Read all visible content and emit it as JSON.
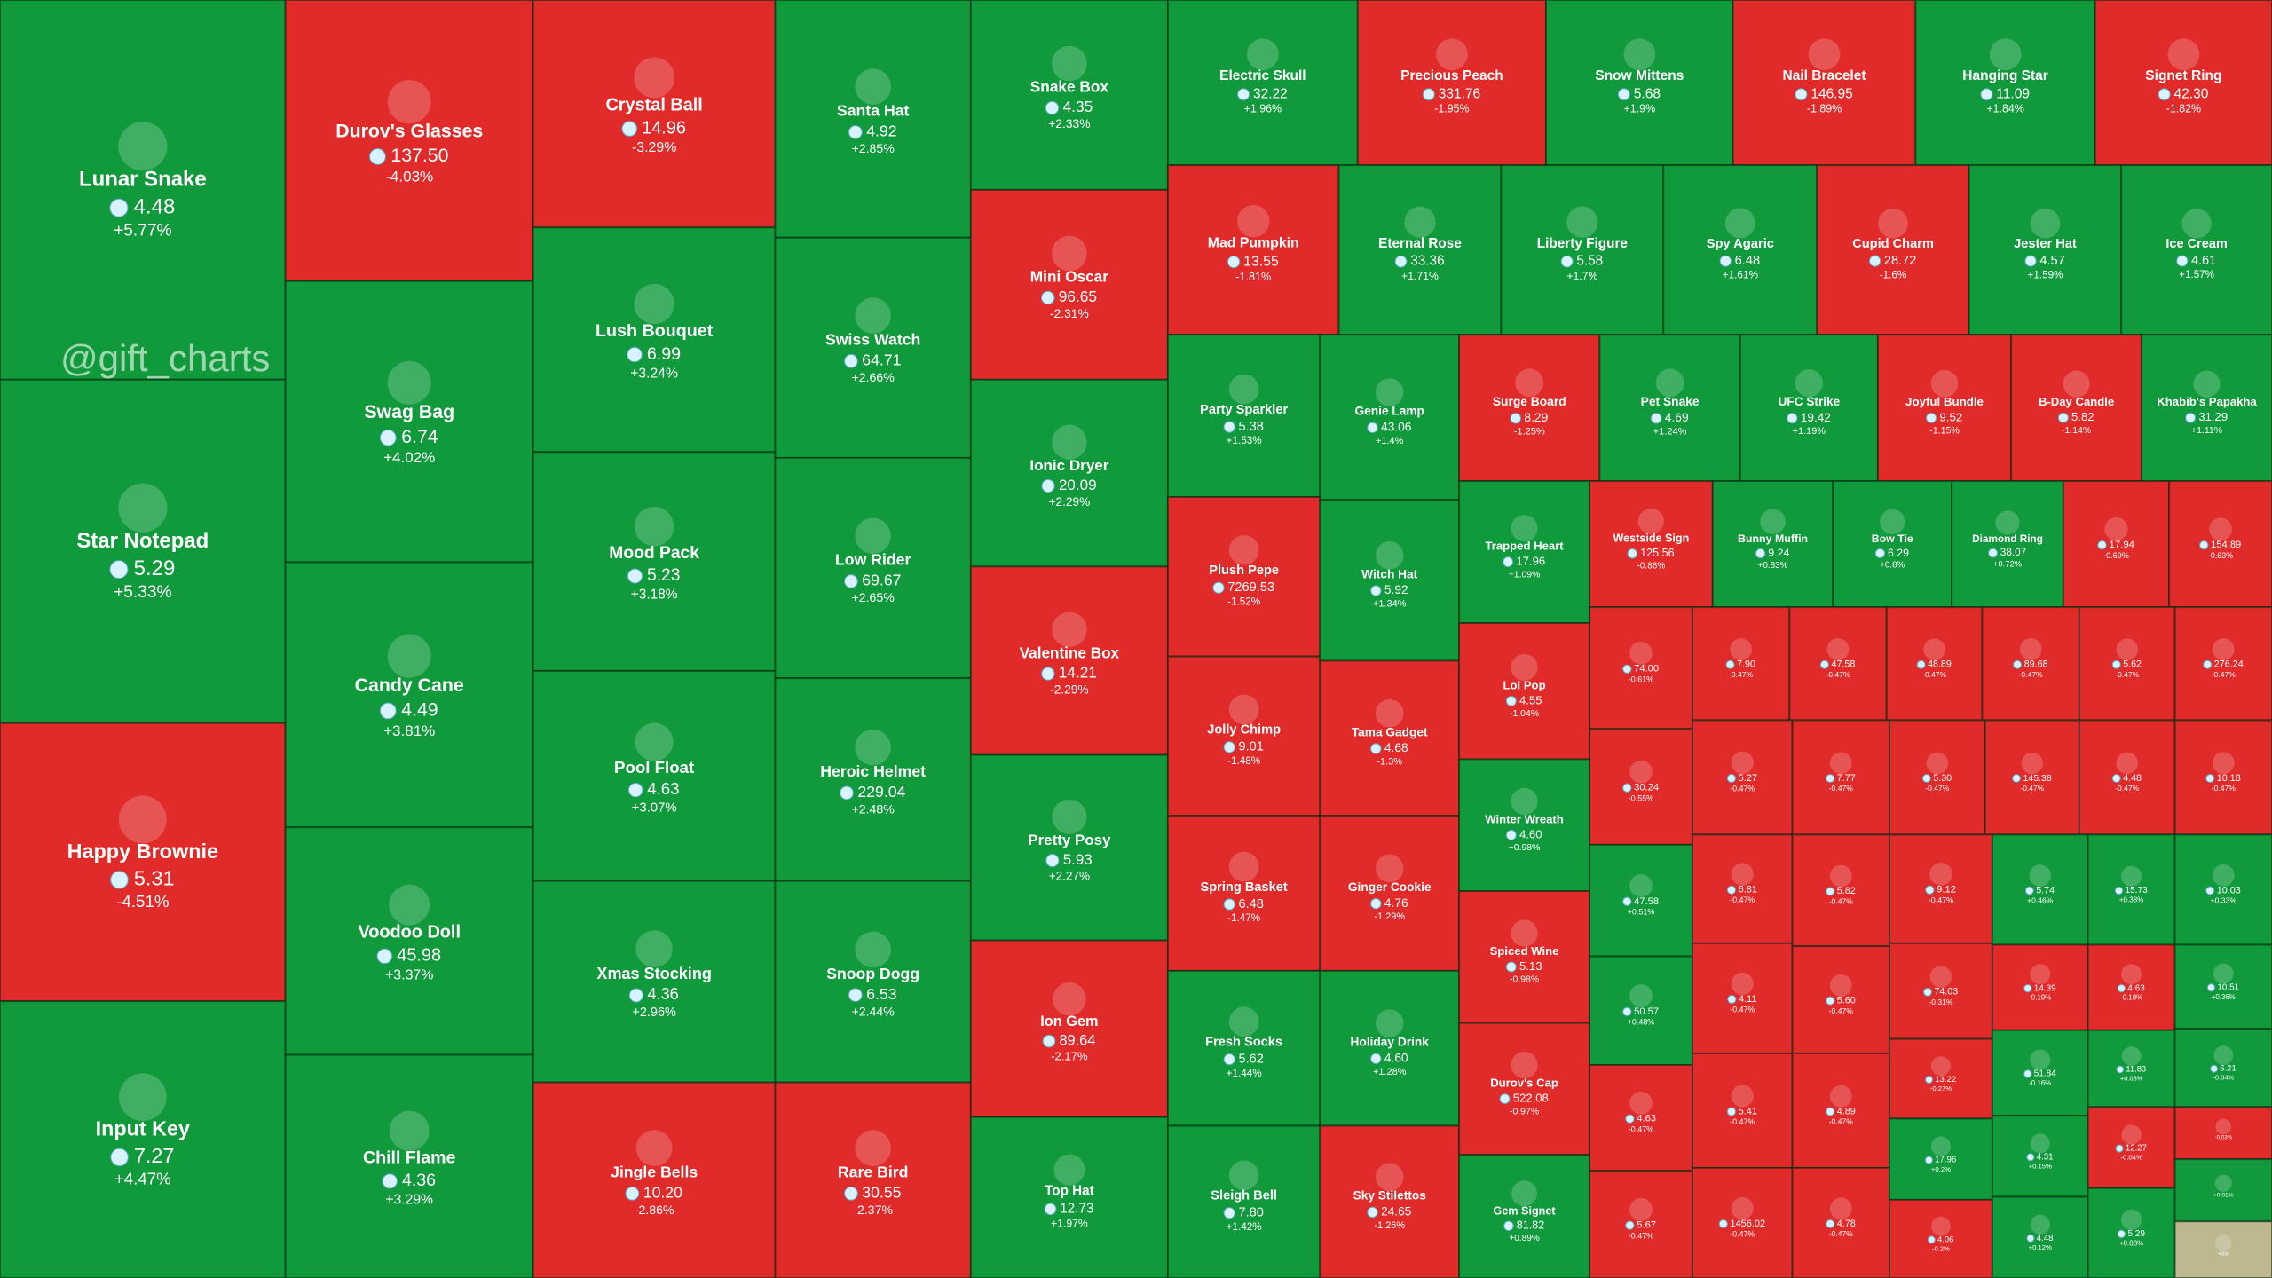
{
  "watermark": "@gift_charts",
  "tiles": [
    {
      "name": "Lunar Snake",
      "price": "4.48",
      "change": "+5.77%",
      "color": "#119a3c"
    },
    {
      "name": "Star Notepad",
      "price": "5.29",
      "change": "+5.33%",
      "color": "#119a3c"
    },
    {
      "name": "Happy Brownie",
      "price": "5.31",
      "change": "-4.51%",
      "color": "#e12a2a"
    },
    {
      "name": "Input Key",
      "price": "7.27",
      "change": "+4.47%",
      "color": "#119a3c"
    },
    {
      "name": "Durov's Glasses",
      "price": "137.50",
      "change": "-4.03%",
      "color": "#e12a2a"
    },
    {
      "name": "Swag Bag",
      "price": "6.74",
      "change": "+4.02%",
      "color": "#119a3c"
    },
    {
      "name": "Candy Cane",
      "price": "4.49",
      "change": "+3.81%",
      "color": "#119a3c"
    },
    {
      "name": "Voodoo Doll",
      "price": "45.98",
      "change": "+3.37%",
      "color": "#119a3c"
    },
    {
      "name": "Chill Flame",
      "price": "4.36",
      "change": "+3.29%",
      "color": "#119a3c"
    },
    {
      "name": "Crystal Ball",
      "price": "14.96",
      "change": "-3.29%",
      "color": "#e12a2a"
    },
    {
      "name": "Lush Bouquet",
      "price": "6.99",
      "change": "+3.24%",
      "color": "#119a3c"
    },
    {
      "name": "Mood Pack",
      "price": "5.23",
      "change": "+3.18%",
      "color": "#119a3c"
    },
    {
      "name": "Pool Float",
      "price": "4.63",
      "change": "+3.07%",
      "color": "#119a3c"
    },
    {
      "name": "Xmas Stocking",
      "price": "4.36",
      "change": "+2.96%",
      "color": "#119a3c"
    },
    {
      "name": "Jingle Bells",
      "price": "10.20",
      "change": "-2.86%",
      "color": "#e12a2a"
    },
    {
      "name": "Santa Hat",
      "price": "4.92",
      "change": "+2.85%",
      "color": "#119a3c"
    },
    {
      "name": "Swiss Watch",
      "price": "64.71",
      "change": "+2.66%",
      "color": "#119a3c"
    },
    {
      "name": "Low Rider",
      "price": "69.67",
      "change": "+2.65%",
      "color": "#119a3c"
    },
    {
      "name": "Heroic Helmet",
      "price": "229.04",
      "change": "+2.48%",
      "color": "#119a3c"
    },
    {
      "name": "Snoop Dogg",
      "price": "6.53",
      "change": "+2.44%",
      "color": "#119a3c"
    },
    {
      "name": "Rare Bird",
      "price": "30.55",
      "change": "-2.37%",
      "color": "#e12a2a"
    },
    {
      "name": "Snake Box",
      "price": "4.35",
      "change": "+2.33%",
      "color": "#119a3c"
    },
    {
      "name": "Mini Oscar",
      "price": "96.65",
      "change": "-2.31%",
      "color": "#e12a2a"
    },
    {
      "name": "Ionic Dryer",
      "price": "20.09",
      "change": "+2.29%",
      "color": "#119a3c"
    },
    {
      "name": "Valentine Box",
      "price": "14.21",
      "change": "-2.29%",
      "color": "#e12a2a"
    },
    {
      "name": "Pretty Posy",
      "price": "5.93",
      "change": "+2.27%",
      "color": "#119a3c"
    },
    {
      "name": "Ion Gem",
      "price": "89.64",
      "change": "-2.17%",
      "color": "#e12a2a"
    },
    {
      "name": "Top Hat",
      "price": "12.73",
      "change": "+1.97%",
      "color": "#119a3c"
    },
    {
      "name": "Electric Skull",
      "price": "32.22",
      "change": "+1.96%",
      "color": "#119a3c"
    },
    {
      "name": "Precious Peach",
      "price": "331.76",
      "change": "-1.95%",
      "color": "#e12a2a"
    },
    {
      "name": "Snow Mittens",
      "price": "5.68",
      "change": "+1.9%",
      "color": "#119a3c"
    },
    {
      "name": "Nail Bracelet",
      "price": "146.95",
      "change": "-1.89%",
      "color": "#e12a2a"
    },
    {
      "name": "Hanging Star",
      "price": "11.09",
      "change": "+1.84%",
      "color": "#119a3c"
    },
    {
      "name": "Signet Ring",
      "price": "42.30",
      "change": "-1.82%",
      "color": "#e12a2a"
    },
    {
      "name": "Mad Pumpkin",
      "price": "13.55",
      "change": "-1.81%",
      "color": "#e12a2a"
    },
    {
      "name": "Eternal Rose",
      "price": "33.36",
      "change": "+1.71%",
      "color": "#119a3c"
    },
    {
      "name": "Liberty Figure",
      "price": "5.58",
      "change": "+1.7%",
      "color": "#119a3c"
    },
    {
      "name": "Spy Agaric",
      "price": "6.48",
      "change": "+1.61%",
      "color": "#119a3c"
    },
    {
      "name": "Cupid Charm",
      "price": "28.72",
      "change": "-1.6%",
      "color": "#e12a2a"
    },
    {
      "name": "Jester Hat",
      "price": "4.57",
      "change": "+1.59%",
      "color": "#119a3c"
    },
    {
      "name": "Ice Cream",
      "price": "4.61",
      "change": "+1.57%",
      "color": "#119a3c"
    },
    {
      "name": "Party Sparkler",
      "price": "5.38",
      "change": "+1.53%",
      "color": "#119a3c"
    },
    {
      "name": "Plush Pepe",
      "price": "7269.53",
      "change": "-1.52%",
      "color": "#e12a2a"
    },
    {
      "name": "Jolly Chimp",
      "price": "9.01",
      "change": "-1.48%",
      "color": "#e12a2a"
    },
    {
      "name": "Spring Basket",
      "price": "6.48",
      "change": "-1.47%",
      "color": "#e12a2a"
    },
    {
      "name": "Fresh Socks",
      "price": "5.62",
      "change": "+1.44%",
      "color": "#119a3c"
    },
    {
      "name": "Sleigh Bell",
      "price": "7.80",
      "change": "+1.42%",
      "color": "#119a3c"
    },
    {
      "name": "Genie Lamp",
      "price": "43.06",
      "change": "+1.4%",
      "color": "#119a3c"
    },
    {
      "name": "Witch Hat",
      "price": "5.92",
      "change": "+1.34%",
      "color": "#119a3c"
    },
    {
      "name": "Tama Gadget",
      "price": "4.68",
      "change": "-1.3%",
      "color": "#e12a2a"
    },
    {
      "name": "Ginger Cookie",
      "price": "4.76",
      "change": "-1.29%",
      "color": "#e12a2a"
    },
    {
      "name": "Holiday Drink",
      "price": "4.60",
      "change": "+1.28%",
      "color": "#119a3c"
    },
    {
      "name": "Sky Stilettos",
      "price": "24.65",
      "change": "-1.26%",
      "color": "#e12a2a"
    },
    {
      "name": "Surge Board",
      "price": "8.29",
      "change": "-1.25%",
      "color": "#e12a2a"
    },
    {
      "name": "Pet Snake",
      "price": "4.69",
      "change": "+1.24%",
      "color": "#119a3c"
    },
    {
      "name": "UFC Strike",
      "price": "19.42",
      "change": "+1.19%",
      "color": "#119a3c"
    },
    {
      "name": "Joyful Bundle",
      "price": "9.52",
      "change": "-1.15%",
      "color": "#e12a2a"
    },
    {
      "name": "B-Day Candle",
      "price": "5.82",
      "change": "-1.14%",
      "color": "#e12a2a"
    },
    {
      "name": "Khabib's Papakha",
      "price": "31.29",
      "change": "+1.11%",
      "color": "#119a3c"
    },
    {
      "name": "Trapped Heart",
      "price": "17.96",
      "change": "+1.09%",
      "color": "#119a3c"
    },
    {
      "name": "Lol Pop",
      "price": "4.55",
      "change": "-1.04%",
      "color": "#e12a2a"
    },
    {
      "name": "Winter Wreath",
      "price": "4.60",
      "change": "+0.98%",
      "color": "#119a3c"
    },
    {
      "name": "Spiced Wine",
      "price": "5.13",
      "change": "-0.98%",
      "color": "#e12a2a"
    },
    {
      "name": "Durov's Cap",
      "price": "522.08",
      "change": "-0.97%",
      "color": "#e12a2a"
    },
    {
      "name": "Gem Signet",
      "price": "81.82",
      "change": "+0.89%",
      "color": "#119a3c"
    },
    {
      "name": "Westside Sign",
      "price": "125.56",
      "change": "-0.86%",
      "color": "#e12a2a"
    },
    {
      "name": "Bunny Muffin",
      "price": "9.24",
      "change": "+0.83%",
      "color": "#119a3c"
    },
    {
      "name": "Bow Tie",
      "price": "6.29",
      "change": "+0.8%",
      "color": "#119a3c"
    },
    {
      "name": "Diamond Ring",
      "price": "38.07",
      "change": "+0.72%",
      "color": "#119a3c"
    },
    {
      "price": "17.94",
      "change": "-0.69%",
      "color": "#e12a2a"
    },
    {
      "price": "154.89",
      "change": "-0.63%",
      "color": "#e12a2a"
    },
    {
      "price": "74.00",
      "change": "-0.61%",
      "color": "#e12a2a"
    },
    {
      "price": "30.24",
      "change": "-0.55%",
      "color": "#e12a2a"
    },
    {
      "price": "47.58",
      "change": "+0.51%",
      "color": "#119a3c"
    },
    {
      "price": "50.57",
      "change": "+0.48%",
      "color": "#119a3c"
    },
    {
      "price": "4.63",
      "change": "-0.47%",
      "color": "#e12a2a"
    },
    {
      "price": "5.67",
      "change": "-0.47%",
      "color": "#e12a2a"
    },
    {
      "price": "7.90",
      "change": "-0.47%",
      "color": "#e12a2a"
    },
    {
      "price": "47.58",
      "change": "-0.47%",
      "color": "#e12a2a"
    },
    {
      "price": "48.89",
      "change": "-0.47%",
      "color": "#e12a2a"
    },
    {
      "price": "89.68",
      "change": "-0.47%",
      "color": "#e12a2a"
    },
    {
      "price": "5.62",
      "change": "-0.47%",
      "color": "#e12a2a"
    },
    {
      "price": "276.24",
      "change": "-0.47%",
      "color": "#e12a2a"
    },
    {
      "price": "5.27",
      "change": "-0.47%",
      "color": "#e12a2a"
    },
    {
      "price": "7.77",
      "change": "-0.47%",
      "color": "#e12a2a"
    },
    {
      "price": "5.30",
      "change": "-0.47%",
      "color": "#e12a2a"
    },
    {
      "price": "145.38",
      "change": "-0.47%",
      "color": "#e12a2a"
    },
    {
      "price": "4.48",
      "change": "-0.47%",
      "color": "#e12a2a"
    },
    {
      "price": "10.18",
      "change": "-0.47%",
      "color": "#e12a2a"
    },
    {
      "price": "6.81",
      "change": "-0.47%",
      "color": "#e12a2a"
    },
    {
      "price": "4.11",
      "change": "-0.47%",
      "color": "#e12a2a"
    },
    {
      "price": "5.41",
      "change": "-0.47%",
      "color": "#e12a2a"
    },
    {
      "price": "1456.02",
      "change": "-0.47%",
      "color": "#e12a2a"
    },
    {
      "price": "5.82",
      "change": "-0.47%",
      "color": "#e12a2a"
    },
    {
      "price": "5.60",
      "change": "-0.47%",
      "color": "#e12a2a"
    },
    {
      "price": "4.89",
      "change": "-0.47%",
      "color": "#e12a2a"
    },
    {
      "price": "4.78",
      "change": "-0.47%",
      "color": "#e12a2a"
    },
    {
      "price": "9.12",
      "change": "-0.47%",
      "color": "#e12a2a"
    },
    {
      "price": "74.03",
      "change": "-0.31%",
      "color": "#e12a2a"
    },
    {
      "price": "13.22",
      "change": "-0.27%",
      "color": "#e12a2a"
    },
    {
      "price": "17.96",
      "change": "+0.2%",
      "color": "#119a3c"
    },
    {
      "price": "4.06",
      "change": "-0.2%",
      "color": "#e12a2a"
    },
    {
      "price": "5.74",
      "change": "+0.46%",
      "color": "#119a3c"
    },
    {
      "price": "14.39",
      "change": "-0.19%",
      "color": "#e12a2a"
    },
    {
      "price": "51.84",
      "change": "-0.16%",
      "color": "#119a3c"
    },
    {
      "price": "4.31",
      "change": "+0.15%",
      "color": "#119a3c"
    },
    {
      "price": "4.48",
      "change": "+0.12%",
      "color": "#119a3c"
    },
    {
      "price": "15.73",
      "change": "+0.38%",
      "color": "#119a3c"
    },
    {
      "price": "4.63",
      "change": "-0.18%",
      "color": "#e12a2a"
    },
    {
      "price": "11.83",
      "change": "+0.08%",
      "color": "#119a3c"
    },
    {
      "price": "12.27",
      "change": "-0.04%",
      "color": "#e12a2a"
    },
    {
      "price": "5.29",
      "change": "+0.03%",
      "color": "#119a3c"
    },
    {
      "price": "10.03",
      "change": "+0.33%",
      "color": "#119a3c"
    },
    {
      "price": "10.51",
      "change": "+0.36%",
      "color": "#119a3c"
    },
    {
      "price": "6.21",
      "change": "-0.04%",
      "color": "#119a3c"
    },
    {
      "change": "-0.03%",
      "color": "#e12a2a"
    },
    {
      "change": "+0.01%",
      "color": "#119a3c"
    },
    {
      "change": "+0%",
      "color": "#bdb88f"
    }
  ]
}
